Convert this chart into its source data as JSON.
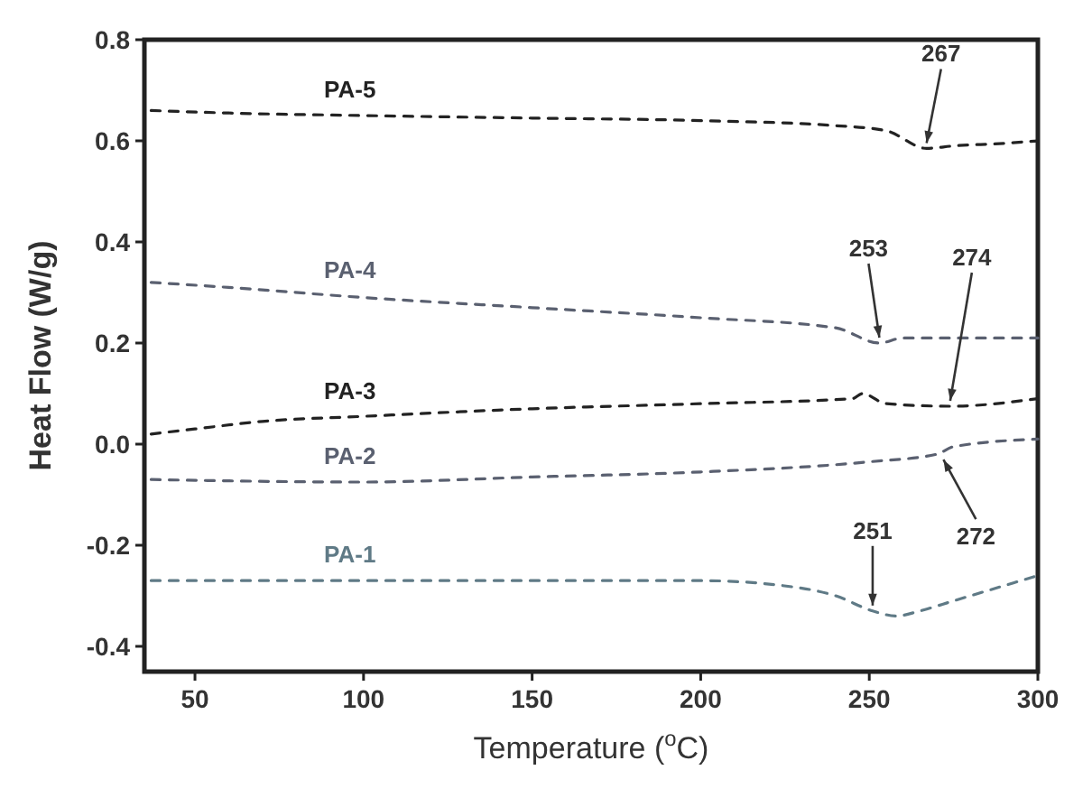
{
  "chart_data": {
    "type": "line",
    "xlabel": "Temperature ($^{o}$C)",
    "ylabel": "Heat Flow (W/g)",
    "xlim": [
      35,
      300
    ],
    "ylim": [
      -0.45,
      0.8
    ],
    "xticks": [
      50,
      100,
      150,
      200,
      250,
      300
    ],
    "yticks": [
      -0.4,
      -0.2,
      {
        "value": 0,
        "label": "0.0"
      },
      0.2,
      0.4,
      0.6,
      0.8
    ],
    "grid": false,
    "line_style": "dashed",
    "series": [
      {
        "name": "PA-5",
        "color": "#222222",
        "x": [
          37,
          60,
          100,
          150,
          200,
          240,
          255,
          267,
          275,
          290,
          300
        ],
        "values": [
          0.66,
          0.655,
          0.65,
          0.645,
          0.64,
          0.63,
          0.62,
          0.585,
          0.59,
          0.595,
          0.6
        ]
      },
      {
        "name": "PA-4",
        "color": "#5a6070",
        "x": [
          37,
          60,
          100,
          150,
          200,
          240,
          253,
          260,
          280,
          300
        ],
        "values": [
          0.32,
          0.31,
          0.29,
          0.27,
          0.25,
          0.23,
          0.2,
          0.21,
          0.21,
          0.21
        ]
      },
      {
        "name": "PA-3",
        "color": "#222222",
        "x": [
          37,
          50,
          70,
          100,
          150,
          200,
          245,
          248,
          255,
          274,
          300
        ],
        "values": [
          0.02,
          0.03,
          0.045,
          0.055,
          0.07,
          0.08,
          0.09,
          0.1,
          0.08,
          0.075,
          0.09
        ]
      },
      {
        "name": "PA-2",
        "color": "#5a6070",
        "x": [
          37,
          100,
          150,
          200,
          250,
          270,
          275,
          300
        ],
        "values": [
          -0.07,
          -0.075,
          -0.065,
          -0.055,
          -0.035,
          -0.02,
          -0.005,
          0.01
        ]
      },
      {
        "name": "PA-1",
        "color": "#5f7a86",
        "x": [
          37,
          150,
          200,
          230,
          240,
          251,
          258,
          265,
          275,
          290,
          300
        ],
        "values": [
          -0.27,
          -0.27,
          -0.27,
          -0.285,
          -0.3,
          -0.33,
          -0.34,
          -0.33,
          -0.31,
          -0.28,
          -0.26
        ]
      }
    ],
    "annotations": [
      {
        "text": "267",
        "x": 267,
        "y": 0.585
      },
      {
        "text": "253",
        "x": 253,
        "y": 0.2
      },
      {
        "text": "274",
        "x": 274,
        "y": 0.075
      },
      {
        "text": "272",
        "x": 272,
        "y": -0.02
      },
      {
        "text": "251",
        "x": 251,
        "y": -0.33
      }
    ]
  }
}
